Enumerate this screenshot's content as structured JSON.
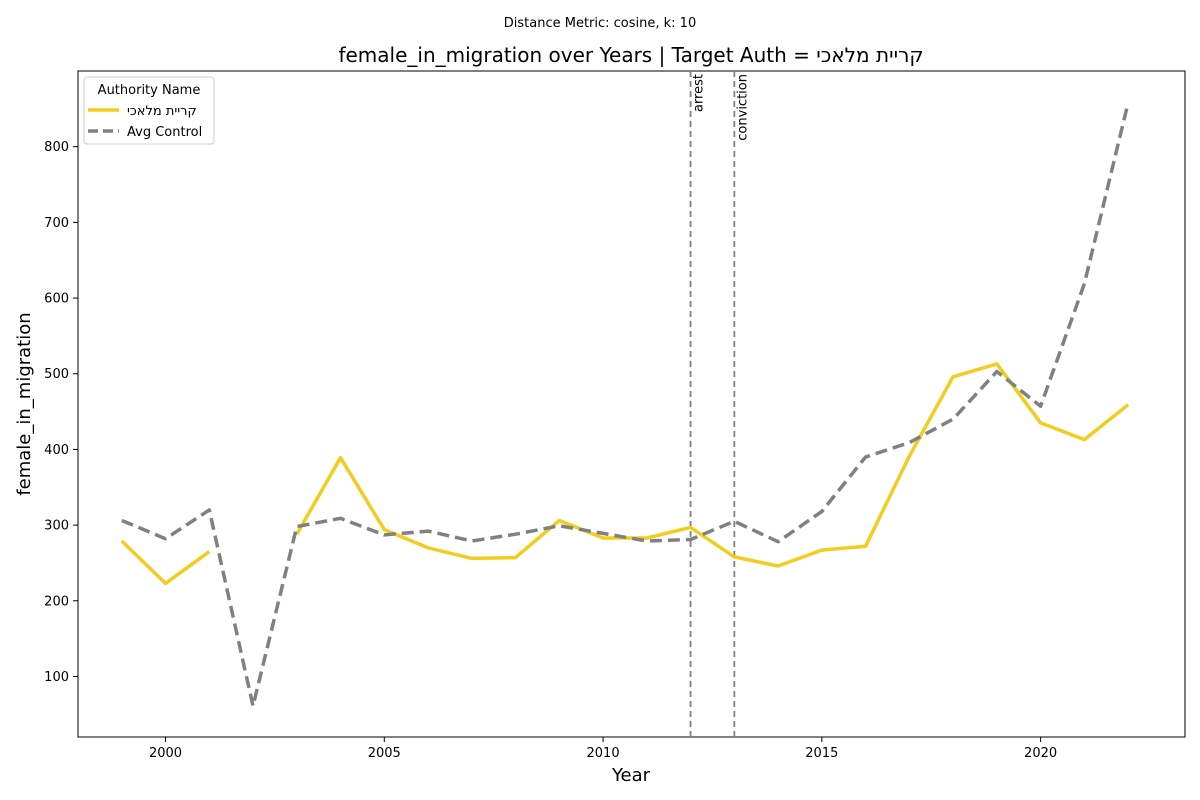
{
  "chart_data": {
    "type": "line",
    "suptitle": "Distance Metric: cosine, k: 10",
    "title": "female_in_migration over Years | Target Auth = קריית מלאכי",
    "xlabel": "Year",
    "ylabel": "female_in_migration",
    "xlim": [
      1998,
      2023.3
    ],
    "ylim": [
      20,
      900
    ],
    "xticks": [
      2000,
      2005,
      2010,
      2015,
      2020
    ],
    "yticks": [
      100,
      200,
      300,
      400,
      500,
      600,
      700,
      800
    ],
    "grid": false,
    "legend": {
      "title": "Authority Name",
      "placement": "top-left"
    },
    "series": [
      {
        "name": "קריית מלאכי",
        "color": "#f2cd1f",
        "style": "solid",
        "points": [
          [
            1999,
            279
          ],
          [
            2000,
            223
          ],
          [
            2001,
            265
          ],
          [
            2003,
            288
          ],
          [
            2004,
            389
          ],
          [
            2005,
            294
          ],
          [
            2006,
            270
          ],
          [
            2007,
            256
          ],
          [
            2008,
            257
          ],
          [
            2009,
            306
          ],
          [
            2010,
            283
          ],
          [
            2011,
            283
          ],
          [
            2012,
            297
          ],
          [
            2013,
            258
          ],
          [
            2014,
            246
          ],
          [
            2015,
            267
          ],
          [
            2016,
            272
          ],
          [
            2017,
            391
          ],
          [
            2018,
            496
          ],
          [
            2019,
            513
          ],
          [
            2020,
            435
          ],
          [
            2021,
            413
          ],
          [
            2022,
            459
          ]
        ]
      },
      {
        "name": "Avg Control",
        "color": "#808080",
        "style": "dashed",
        "points": [
          [
            1999,
            306
          ],
          [
            2000,
            282
          ],
          [
            2001,
            320
          ],
          [
            2002,
            61
          ],
          [
            2003,
            298
          ],
          [
            2004,
            309
          ],
          [
            2005,
            287
          ],
          [
            2006,
            292
          ],
          [
            2007,
            279
          ],
          [
            2008,
            288
          ],
          [
            2009,
            299
          ],
          [
            2010,
            289
          ],
          [
            2011,
            279
          ],
          [
            2012,
            281
          ],
          [
            2013,
            305
          ],
          [
            2014,
            278
          ],
          [
            2015,
            318
          ],
          [
            2016,
            390
          ],
          [
            2017,
            409
          ],
          [
            2018,
            440
          ],
          [
            2019,
            503
          ],
          [
            2020,
            457
          ],
          [
            2021,
            619
          ],
          [
            2022,
            858
          ]
        ]
      }
    ],
    "vlines": [
      {
        "x": 2012,
        "label": "arrest",
        "color": "#808080"
      },
      {
        "x": 2013,
        "label": "conviction",
        "color": "#808080"
      }
    ]
  }
}
